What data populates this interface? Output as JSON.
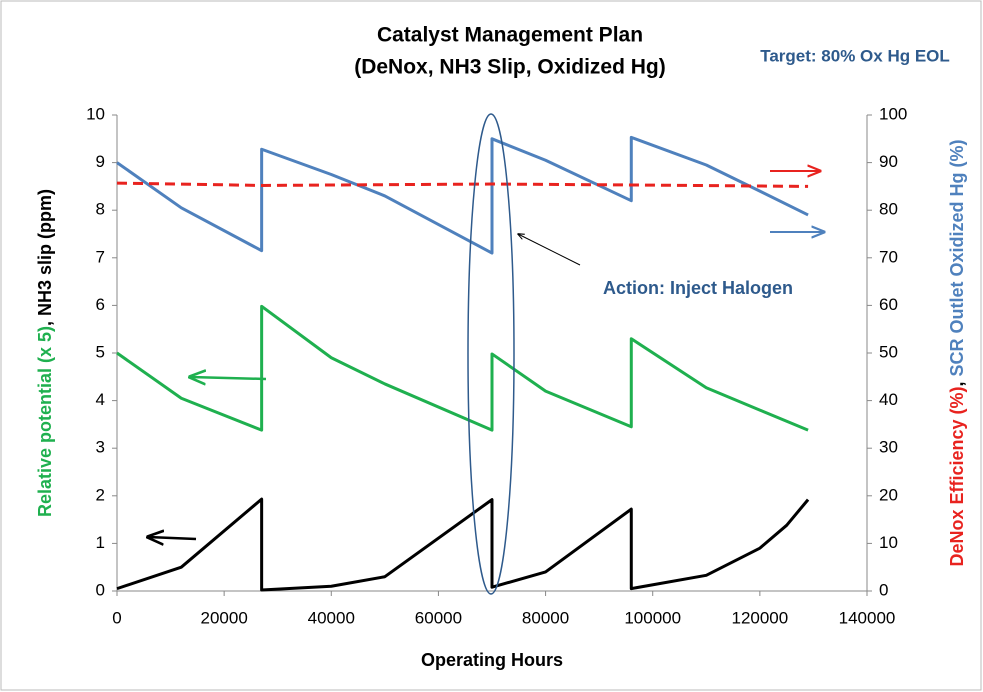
{
  "chart_data": {
    "type": "line",
    "title": [
      "Catalyst Management Plan",
      "(DeNox, NH3 Slip, Oxidized Hg)"
    ],
    "xlabel": "Operating Hours",
    "ylabel_parts": [
      {
        "text": "Relative potential (x 5)",
        "color": "#1fb04f"
      },
      {
        "text": ", NH3 slip (ppm)",
        "color": "#000000"
      }
    ],
    "y2label_parts": [
      {
        "text": "DeNox Efficiency (%)",
        "color": "#e8231f"
      },
      {
        "text": ", ",
        "color": "#000000"
      },
      {
        "text": "SCR Outlet Oxidized Hg (%)",
        "color": "#4f81bd"
      }
    ],
    "annotations": [
      "Target: 80% Ox Hg EOL",
      "Action: Inject Halogen"
    ],
    "xlim": [
      0,
      140000
    ],
    "xticks": [
      0,
      20000,
      40000,
      60000,
      80000,
      100000,
      120000,
      140000
    ],
    "ylim": [
      0,
      10
    ],
    "yticks": [
      0,
      1,
      2,
      3,
      4,
      5,
      6,
      7,
      8,
      9,
      10
    ],
    "y2lim": [
      0,
      100
    ],
    "y2ticks": [
      0,
      10,
      20,
      30,
      40,
      50,
      60,
      70,
      80,
      90,
      100
    ],
    "series": [
      {
        "color": "#1fb04f",
        "x": [
          0,
          12000,
          27000,
          27000,
          40000,
          50000,
          70000,
          70000,
          80000,
          96000,
          96000,
          110000,
          120000,
          129000
        ],
        "values": [
          5,
          4.05,
          3.38,
          5.98,
          4.9,
          4.35,
          3.38,
          4.98,
          4.2,
          3.45,
          5.3,
          4.27,
          3.8,
          3.38
        ]
      },
      {
        "color": "#000000",
        "x": [
          0,
          12000,
          27000,
          27000,
          40000,
          50000,
          70000,
          70000,
          80000,
          96000,
          96000,
          110000,
          120000,
          125000,
          129000
        ],
        "values": [
          0.05,
          0.5,
          1.93,
          0.02,
          0.1,
          0.3,
          1.92,
          0.08,
          0.4,
          1.72,
          0.05,
          0.33,
          0.9,
          1.38,
          1.92
        ]
      },
      {
        "color": "#4f81bd",
        "axis": "y2",
        "x": [
          0,
          12000,
          27000,
          27000,
          40000,
          50000,
          70000,
          70000,
          80000,
          96000,
          96000,
          110000,
          120000,
          129000
        ],
        "values": [
          90,
          80.5,
          71.5,
          92.8,
          87.5,
          83,
          71,
          95,
          90.5,
          82,
          95.3,
          89.5,
          84,
          79
        ]
      },
      {
        "color": "#e8231f",
        "axis": "y2",
        "dashed": true,
        "x": [
          0,
          27000,
          70000,
          96000,
          129000
        ],
        "values": [
          85.7,
          85.2,
          85.5,
          85.3,
          85
        ]
      }
    ]
  }
}
